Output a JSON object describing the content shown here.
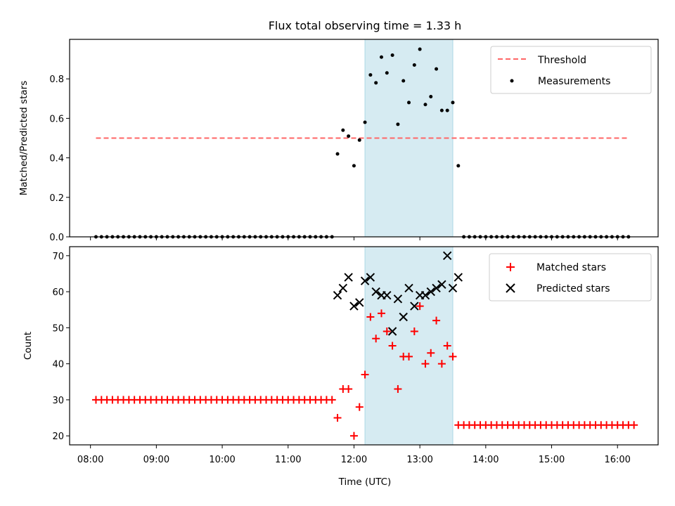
{
  "chart_data": {
    "title": "Flux total observing time = 1.33 h",
    "xlabel": "Time (UTC)",
    "x_ticks": [
      "08:00",
      "09:00",
      "10:00",
      "11:00",
      "12:00",
      "13:00",
      "14:00",
      "15:00",
      "16:00"
    ],
    "x_range": [
      "07:41",
      "16:37"
    ],
    "highlight_span": {
      "start": "12:10",
      "end": "13:30",
      "color": "#add8e6"
    },
    "panels": [
      {
        "type": "scatter",
        "ylabel": "Matched/Predicted stars",
        "ylim": [
          0,
          1.0
        ],
        "yticks": [
          "0.0",
          "0.2",
          "0.4",
          "0.6",
          "0.8"
        ],
        "ytick_values": [
          0,
          0.2,
          0.4,
          0.6,
          0.8
        ],
        "legend_position": "upper right",
        "threshold": {
          "name": "Threshold",
          "value": 0.5,
          "color": "#ff6666",
          "x_start": "08:05",
          "x_end": "16:10"
        },
        "measurements": {
          "name": "Measurements",
          "color": "#000000",
          "pre": {
            "start": "08:05",
            "end": "11:40",
            "step_min": 5,
            "value": 0
          },
          "points": [
            [
              "11:45",
              0.42
            ],
            [
              "11:50",
              0.54
            ],
            [
              "11:55",
              0.51
            ],
            [
              "12:00",
              0.36
            ],
            [
              "12:05",
              0.49
            ],
            [
              "12:10",
              0.58
            ],
            [
              "12:15",
              0.82
            ],
            [
              "12:20",
              0.78
            ],
            [
              "12:25",
              0.91
            ],
            [
              "12:30",
              0.83
            ],
            [
              "12:35",
              0.92
            ],
            [
              "12:40",
              0.57
            ],
            [
              "12:45",
              0.79
            ],
            [
              "12:50",
              0.68
            ],
            [
              "12:55",
              0.87
            ],
            [
              "13:00",
              0.95
            ],
            [
              "13:05",
              0.67
            ],
            [
              "13:10",
              0.71
            ],
            [
              "13:15",
              0.85
            ],
            [
              "13:20",
              0.64
            ],
            [
              "13:25",
              0.64
            ],
            [
              "13:30",
              0.68
            ],
            [
              "13:35",
              0.36
            ]
          ],
          "post": {
            "start": "13:40",
            "end": "16:10",
            "step_min": 5,
            "value": 0
          }
        }
      },
      {
        "type": "scatter",
        "ylabel": "Count",
        "ylim": [
          17.5,
          72.5
        ],
        "yticks": [
          "20",
          "30",
          "40",
          "50",
          "60",
          "70"
        ],
        "ytick_values": [
          20,
          30,
          40,
          50,
          60,
          70
        ],
        "legend_position": "upper right",
        "series": [
          {
            "name": "Matched stars",
            "marker": "plus",
            "color": "#ff0000",
            "pre": {
              "start": "08:05",
              "end": "11:40",
              "step_min": 5,
              "value": 30
            },
            "points": [
              [
                "11:45",
                25
              ],
              [
                "11:50",
                33
              ],
              [
                "11:55",
                33
              ],
              [
                "12:00",
                20
              ],
              [
                "12:05",
                28
              ],
              [
                "12:10",
                37
              ],
              [
                "12:15",
                53
              ],
              [
                "12:20",
                47
              ],
              [
                "12:25",
                54
              ],
              [
                "12:30",
                49
              ],
              [
                "12:35",
                45
              ],
              [
                "12:40",
                33
              ],
              [
                "12:45",
                42
              ],
              [
                "12:50",
                42
              ],
              [
                "12:55",
                49
              ],
              [
                "13:00",
                56
              ],
              [
                "13:05",
                40
              ],
              [
                "13:10",
                43
              ],
              [
                "13:15",
                52
              ],
              [
                "13:20",
                40
              ],
              [
                "13:25",
                45
              ],
              [
                "13:30",
                42
              ]
            ],
            "post": {
              "start": "13:35",
              "end": "16:15",
              "step_min": 5,
              "value": 23
            }
          },
          {
            "name": "Predicted stars",
            "marker": "x",
            "color": "#000000",
            "points": [
              [
                "11:45",
                59
              ],
              [
                "11:50",
                61
              ],
              [
                "11:55",
                64
              ],
              [
                "12:00",
                56
              ],
              [
                "12:05",
                57
              ],
              [
                "12:10",
                63
              ],
              [
                "12:15",
                64
              ],
              [
                "12:20",
                60
              ],
              [
                "12:25",
                59
              ],
              [
                "12:30",
                59
              ],
              [
                "12:35",
                49
              ],
              [
                "12:40",
                58
              ],
              [
                "12:45",
                53
              ],
              [
                "12:50",
                61
              ],
              [
                "12:55",
                56
              ],
              [
                "13:00",
                59
              ],
              [
                "13:05",
                59
              ],
              [
                "13:10",
                60
              ],
              [
                "13:15",
                61
              ],
              [
                "13:20",
                62
              ],
              [
                "13:25",
                70
              ],
              [
                "13:30",
                61
              ],
              [
                "13:35",
                64
              ]
            ]
          }
        ]
      }
    ]
  }
}
